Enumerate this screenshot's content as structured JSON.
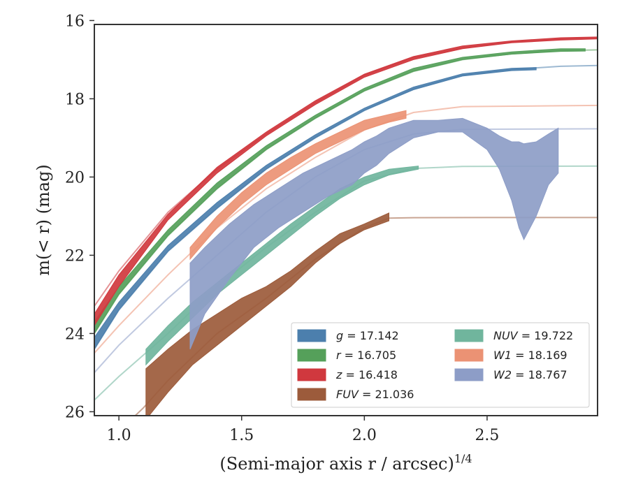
{
  "chart_data": {
    "type": "line",
    "xlabel_main": "(Semi-major axis r / arcsec)",
    "xlabel_sup": "1/4",
    "ylabel": "m(< r) (mag)",
    "xlim": [
      0.9,
      2.95
    ],
    "ylim": [
      26.1,
      16.1
    ],
    "xticks": [
      1.0,
      1.5,
      2.0,
      2.5
    ],
    "xtick_labels": [
      "1.0",
      "1.5",
      "2.0",
      "2.5"
    ],
    "yticks": [
      16,
      18,
      20,
      22,
      24,
      26
    ],
    "ytick_labels": [
      "16",
      "18",
      "20",
      "22",
      "24",
      "26"
    ],
    "grid": false,
    "legend_position": "lower-right",
    "legend": [
      {
        "band": "g",
        "label": "= 17.142",
        "color": "#4c7fad",
        "col": 0,
        "row": 0
      },
      {
        "band": "r",
        "label": "= 16.705",
        "color": "#55a05a",
        "col": 0,
        "row": 1
      },
      {
        "band": "z",
        "label": "= 16.418",
        "color": "#d0383e",
        "col": 0,
        "row": 2
      },
      {
        "band": "FUV",
        "label": "= 21.036",
        "color": "#9c5b3b",
        "col": 0,
        "row": 3
      },
      {
        "band": "NUV",
        "label": "= 19.722",
        "color": "#70b59d",
        "col": 1,
        "row": 0
      },
      {
        "band": "W1",
        "label": "= 18.169",
        "color": "#eb9274",
        "col": 1,
        "row": 1
      },
      {
        "band": "W2",
        "label": "= 18.767",
        "color": "#8d9dc7",
        "col": 1,
        "row": 2
      }
    ],
    "series": [
      {
        "band": "FUV",
        "color": "#9c5b3b",
        "model": [
          [
            0.9,
            27.2
          ],
          [
            1.0,
            26.5
          ],
          [
            1.1,
            25.9
          ],
          [
            1.2,
            25.2
          ],
          [
            1.4,
            24.0
          ],
          [
            1.6,
            23.1
          ],
          [
            1.8,
            22.1
          ],
          [
            2.0,
            21.3
          ],
          [
            2.1,
            21.05
          ],
          [
            2.2,
            21.04
          ],
          [
            2.5,
            21.036
          ],
          [
            2.95,
            21.036
          ]
        ],
        "band_x": [
          1.11,
          1.2,
          1.3,
          1.4,
          1.5,
          1.6,
          1.7,
          1.8,
          1.9,
          2.0,
          2.1
        ],
        "band_lo": [
          26.2,
          25.5,
          24.8,
          24.3,
          23.8,
          23.3,
          22.8,
          22.2,
          21.7,
          21.35,
          21.12
        ],
        "band_hi": [
          24.9,
          24.4,
          23.9,
          23.5,
          23.1,
          22.8,
          22.4,
          21.9,
          21.45,
          21.2,
          20.92
        ]
      },
      {
        "band": "NUV",
        "color": "#70b59d",
        "model": [
          [
            0.9,
            25.7
          ],
          [
            1.0,
            25.1
          ],
          [
            1.2,
            24.0
          ],
          [
            1.4,
            22.8
          ],
          [
            1.6,
            21.8
          ],
          [
            1.8,
            20.9
          ],
          [
            2.0,
            20.1
          ],
          [
            2.2,
            19.78
          ],
          [
            2.4,
            19.73
          ],
          [
            2.95,
            19.722
          ]
        ],
        "band_x": [
          1.11,
          1.2,
          1.3,
          1.4,
          1.5,
          1.6,
          1.7,
          1.8,
          1.9,
          2.0,
          2.1,
          2.22
        ],
        "band_lo": [
          24.8,
          24.2,
          23.6,
          23.0,
          22.5,
          22.0,
          21.5,
          21.0,
          20.55,
          20.2,
          19.95,
          19.8
        ],
        "band_hi": [
          24.4,
          23.8,
          23.2,
          22.7,
          22.2,
          21.7,
          21.2,
          20.75,
          20.3,
          20.0,
          19.8,
          19.72
        ]
      },
      {
        "band": "W2",
        "color": "#8d9dc7",
        "model": [
          [
            0.9,
            25.0
          ],
          [
            1.0,
            24.3
          ],
          [
            1.2,
            23.1
          ],
          [
            1.4,
            22.0
          ],
          [
            1.6,
            20.9
          ],
          [
            1.8,
            20.0
          ],
          [
            2.0,
            19.3
          ],
          [
            2.2,
            18.9
          ],
          [
            2.4,
            18.78
          ],
          [
            2.95,
            18.767
          ]
        ],
        "band_x": [
          1.29,
          1.35,
          1.45,
          1.55,
          1.65,
          1.75,
          1.85,
          1.95,
          2.0,
          2.05,
          2.1,
          2.2,
          2.3,
          2.4,
          2.5,
          2.55,
          2.6,
          2.63,
          2.65,
          2.7,
          2.75,
          2.79
        ],
        "band_lo": [
          24.4,
          23.5,
          22.6,
          21.8,
          21.3,
          20.9,
          20.5,
          20.2,
          19.9,
          19.7,
          19.4,
          19.0,
          18.85,
          18.85,
          19.3,
          19.8,
          20.6,
          21.3,
          21.6,
          21.0,
          20.2,
          19.9
        ],
        "band_hi": [
          22.2,
          21.8,
          21.2,
          20.7,
          20.3,
          19.9,
          19.6,
          19.3,
          19.1,
          18.95,
          18.75,
          18.55,
          18.55,
          18.5,
          18.75,
          18.95,
          19.1,
          19.1,
          19.15,
          19.1,
          18.9,
          18.75
        ]
      },
      {
        "band": "W1",
        "color": "#eb9274",
        "model": [
          [
            0.9,
            24.5
          ],
          [
            1.0,
            23.8
          ],
          [
            1.2,
            22.5
          ],
          [
            1.4,
            21.3
          ],
          [
            1.6,
            20.3
          ],
          [
            1.8,
            19.5
          ],
          [
            2.0,
            18.8
          ],
          [
            2.2,
            18.35
          ],
          [
            2.4,
            18.2
          ],
          [
            2.95,
            18.169
          ]
        ],
        "band_x": [
          1.29,
          1.4,
          1.5,
          1.6,
          1.7,
          1.8,
          1.9,
          2.0,
          2.1,
          2.17
        ],
        "band_lo": [
          22.1,
          21.3,
          20.7,
          20.2,
          19.8,
          19.4,
          19.1,
          18.8,
          18.6,
          18.5
        ],
        "band_hi": [
          21.8,
          21.0,
          20.4,
          19.9,
          19.5,
          19.15,
          18.85,
          18.55,
          18.4,
          18.3
        ]
      },
      {
        "band": "g",
        "color": "#4c7fad",
        "model": [
          [
            0.9,
            24.4
          ],
          [
            1.0,
            23.4
          ],
          [
            1.2,
            21.9
          ],
          [
            1.4,
            20.8
          ],
          [
            1.6,
            19.8
          ],
          [
            1.8,
            19.0
          ],
          [
            2.0,
            18.3
          ],
          [
            2.2,
            17.75
          ],
          [
            2.4,
            17.4
          ],
          [
            2.6,
            17.25
          ],
          [
            2.8,
            17.17
          ],
          [
            2.95,
            17.15
          ]
        ],
        "band_x": [
          0.9,
          1.0,
          1.2,
          1.4,
          1.6,
          1.8,
          2.0,
          2.2,
          2.4,
          2.6,
          2.7
        ],
        "band_lo": [
          24.4,
          23.4,
          21.9,
          20.8,
          19.8,
          19.0,
          18.3,
          17.77,
          17.42,
          17.28,
          17.26
        ],
        "band_hi": [
          24.1,
          23.2,
          21.75,
          20.65,
          19.7,
          18.92,
          18.24,
          17.7,
          17.36,
          17.22,
          17.2
        ]
      },
      {
        "band": "r",
        "color": "#55a05a",
        "model": [
          [
            0.9,
            24.0
          ],
          [
            1.0,
            23.0
          ],
          [
            1.2,
            21.5
          ],
          [
            1.4,
            20.3
          ],
          [
            1.6,
            19.3
          ],
          [
            1.8,
            18.5
          ],
          [
            2.0,
            17.8
          ],
          [
            2.2,
            17.3
          ],
          [
            2.4,
            17.0
          ],
          [
            2.6,
            16.85
          ],
          [
            2.8,
            16.77
          ],
          [
            2.95,
            16.75
          ]
        ],
        "band_x": [
          0.9,
          1.0,
          1.2,
          1.4,
          1.6,
          1.8,
          2.0,
          2.2,
          2.4,
          2.6,
          2.8,
          2.9
        ],
        "band_lo": [
          24.0,
          23.0,
          21.5,
          20.3,
          19.3,
          18.5,
          17.8,
          17.3,
          17.0,
          16.86,
          16.79,
          16.78
        ],
        "band_hi": [
          23.7,
          22.8,
          21.35,
          20.15,
          19.2,
          18.42,
          17.73,
          17.22,
          16.94,
          16.8,
          16.72,
          16.72
        ]
      },
      {
        "band": "z",
        "color": "#d0383e",
        "model": [
          [
            0.9,
            23.3
          ],
          [
            1.0,
            22.4
          ],
          [
            1.2,
            20.9
          ],
          [
            1.4,
            19.8
          ],
          [
            1.6,
            18.9
          ],
          [
            1.8,
            18.1
          ],
          [
            2.0,
            17.4
          ],
          [
            2.2,
            16.95
          ],
          [
            2.4,
            16.7
          ],
          [
            2.6,
            16.55
          ],
          [
            2.8,
            16.48
          ],
          [
            2.95,
            16.45
          ]
        ],
        "band_x": [
          0.9,
          1.0,
          1.2,
          1.4,
          1.6,
          1.8,
          2.0,
          2.2,
          2.4,
          2.6,
          2.8,
          2.95
        ],
        "band_lo": [
          23.8,
          22.8,
          21.1,
          19.9,
          18.95,
          18.15,
          17.45,
          17.0,
          16.72,
          16.57,
          16.5,
          16.47
        ],
        "band_hi": [
          23.5,
          22.5,
          20.95,
          19.75,
          18.85,
          18.05,
          17.37,
          16.92,
          16.65,
          16.52,
          16.44,
          16.42
        ]
      }
    ]
  }
}
